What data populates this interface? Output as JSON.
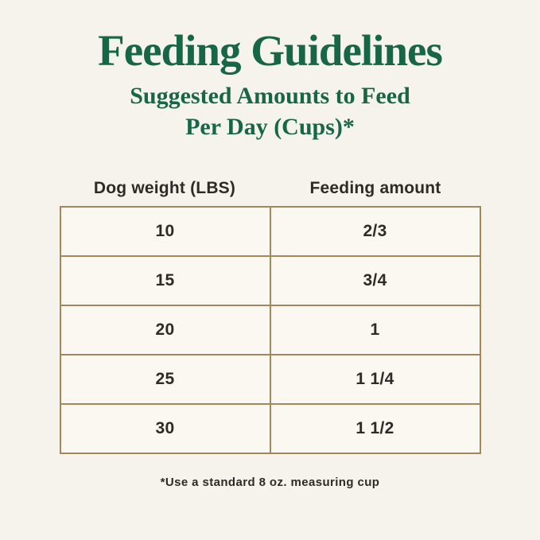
{
  "colors": {
    "background": "#f5f3ec",
    "title_green": "#186648",
    "table_border": "#a3875c",
    "cell_background": "#faf8f1",
    "text_dark": "#2e2a27"
  },
  "header": {
    "title": "Feeding Guidelines",
    "subtitle_line1": "Suggested Amounts to Feed",
    "subtitle_line2": "Per Day (Cups)*"
  },
  "table": {
    "columns": [
      "Dog weight (LBS)",
      "Feeding amount"
    ],
    "rows": [
      {
        "weight": "10",
        "amount": "2/3"
      },
      {
        "weight": "15",
        "amount": "3/4"
      },
      {
        "weight": "20",
        "amount": "1"
      },
      {
        "weight": "25",
        "amount": "1 1/4"
      },
      {
        "weight": "30",
        "amount": "1 1/2"
      }
    ]
  },
  "footnote": "*Use a standard 8 oz. measuring cup",
  "chart_data": {
    "type": "table",
    "title": "Feeding Guidelines",
    "subtitle": "Suggested Amounts to Feed Per Day (Cups)*",
    "columns": [
      "Dog weight (LBS)",
      "Feeding amount"
    ],
    "rows": [
      [
        "10",
        "2/3"
      ],
      [
        "15",
        "3/4"
      ],
      [
        "20",
        "1"
      ],
      [
        "25",
        "1 1/4"
      ],
      [
        "30",
        "1 1/2"
      ]
    ],
    "footnote": "*Use a standard 8 oz. measuring cup"
  }
}
